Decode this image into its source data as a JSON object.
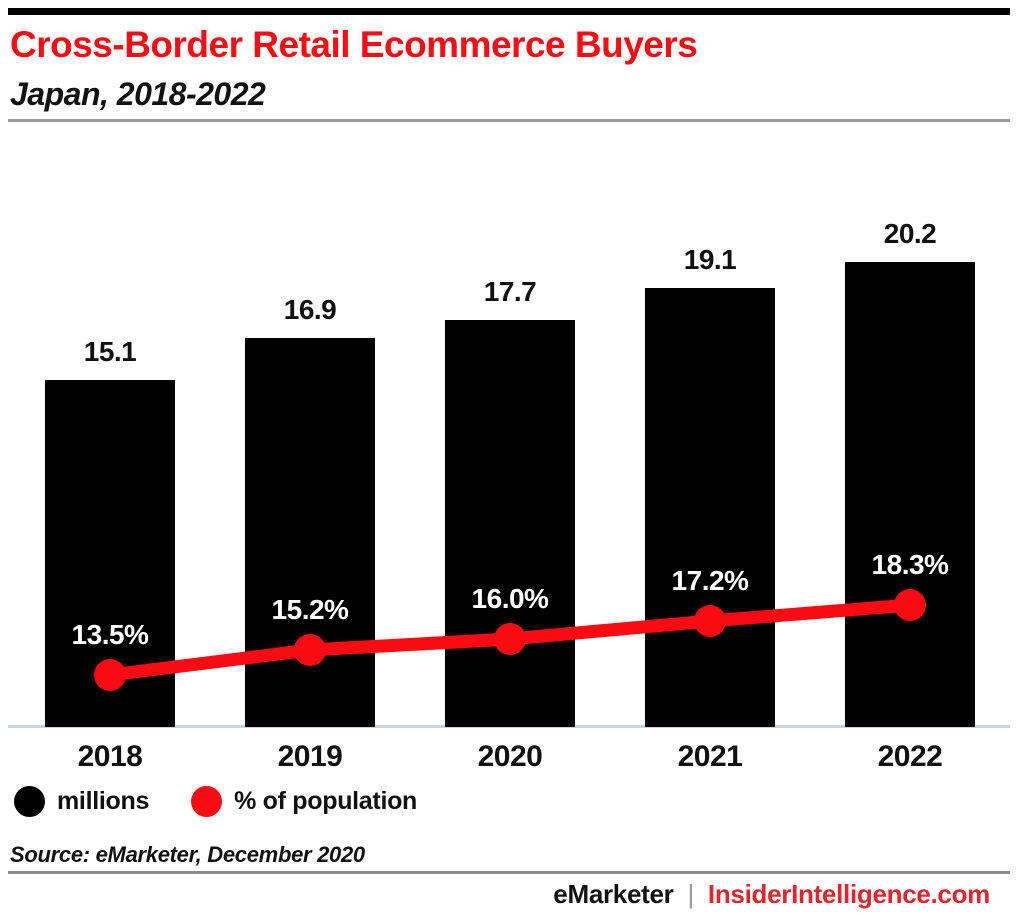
{
  "header": {
    "title": "Cross-Border Retail Ecommerce Buyers",
    "subtitle": "Japan, 2018-2022"
  },
  "chart_data": {
    "type": "combo-bar-line",
    "title": "Cross-Border Retail Ecommerce Buyers",
    "subtitle": "Japan, 2018-2022",
    "categories": [
      "2018",
      "2019",
      "2020",
      "2021",
      "2022"
    ],
    "series": [
      {
        "name": "millions",
        "type": "bar",
        "color": "#000000",
        "values": [
          15.1,
          16.9,
          17.7,
          19.1,
          20.2
        ],
        "labels": [
          "15.1",
          "16.9",
          "17.7",
          "19.1",
          "20.2"
        ]
      },
      {
        "name": "% of population",
        "type": "line",
        "color": "#fa0a12",
        "values": [
          13.5,
          15.2,
          16.0,
          17.2,
          18.3
        ],
        "labels": [
          "13.5%",
          "15.2%",
          "16.0%",
          "17.2%",
          "18.3%"
        ]
      }
    ],
    "legend": {
      "position": "bottom-left",
      "items": [
        {
          "label": "millions",
          "color": "#000000"
        },
        {
          "label": "% of population",
          "color": "#fa0a12"
        }
      ]
    },
    "grid": false,
    "y_axis_shown": false
  },
  "source": {
    "text": "Source: eMarketer, December 2020"
  },
  "footer": {
    "brand": "eMarketer",
    "separator": "|",
    "site": "InsiderIntelligence.com"
  },
  "colors": {
    "accent_red": "#f90d14",
    "line_red": "#fa0a12",
    "footer_red": "#e0252c",
    "bar_black": "#000000",
    "axis_line": "#c9d4e3",
    "rule_gray": "#9a9a9a"
  }
}
